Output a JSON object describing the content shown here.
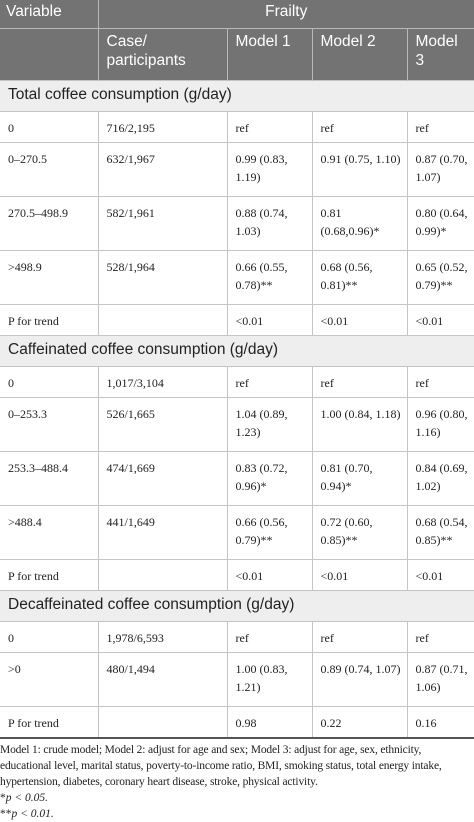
{
  "header": {
    "variable_label": "Variable",
    "frailty_label": "Frailty",
    "columns": [
      "Case/ participants",
      "Model 1",
      "Model 2",
      "Model 3"
    ]
  },
  "sections": [
    {
      "title": "Total coffee consumption (g/day)",
      "rows": [
        {
          "variable": "0",
          "case": "716/2,195",
          "m1": "ref",
          "m2": "ref",
          "m3": "ref"
        },
        {
          "variable": "0–270.5",
          "case": "632/1,967",
          "m1": "0.99 (0.83, 1.19)",
          "m2": "0.91 (0.75, 1.10)",
          "m3": "0.87 (0.70, 1.07)"
        },
        {
          "variable": "270.5–498.9",
          "case": "582/1,961",
          "m1": "0.88 (0.74, 1.03)",
          "m2": "0.81 (0.68,0.96)*",
          "m3": "0.80 (0.64, 0.99)*"
        },
        {
          "variable": ">498.9",
          "case": "528/1,964",
          "m1": "0.66 (0.55, 0.78)**",
          "m2": "0.68 (0.56, 0.81)**",
          "m3": "0.65 (0.52, 0.79)**"
        },
        {
          "variable": "P for trend",
          "case": "",
          "m1": "<0.01",
          "m2": "<0.01",
          "m3": "<0.01"
        }
      ]
    },
    {
      "title": "Caffeinated coffee consumption (g/day)",
      "rows": [
        {
          "variable": "0",
          "case": "1,017/3,104",
          "m1": "ref",
          "m2": "ref",
          "m3": "ref"
        },
        {
          "variable": "0–253.3",
          "case": "526/1,665",
          "m1": "1.04 (0.89, 1.23)",
          "m2": "1.00 (0.84, 1.18)",
          "m3": "0.96 (0.80, 1.16)"
        },
        {
          "variable": "253.3–488.4",
          "case": "474/1,669",
          "m1": "0.83 (0.72, 0.96)*",
          "m2": "0.81 (0.70, 0.94)*",
          "m3": "0.84 (0.69, 1.02)"
        },
        {
          "variable": ">488.4",
          "case": "441/1,649",
          "m1": "0.66 (0.56, 0.79)**",
          "m2": "0.72 (0.60, 0.85)**",
          "m3": "0.68 (0.54, 0.85)**"
        },
        {
          "variable": "P for trend",
          "case": "",
          "m1": "<0.01",
          "m2": "<0.01",
          "m3": "<0.01"
        }
      ]
    },
    {
      "title": "Decaffeinated coffee consumption (g/day)",
      "rows": [
        {
          "variable": "0",
          "case": "1,978/6,593",
          "m1": "ref",
          "m2": "ref",
          "m3": "ref"
        },
        {
          "variable": ">0",
          "case": "480/1,494",
          "m1": "1.00 (0.83, 1.21)",
          "m2": "0.89 (0.74, 1.07)",
          "m3": "0.87 (0.71, 1.06)"
        },
        {
          "variable": "P for trend",
          "case": "",
          "m1": "0.98",
          "m2": "0.22",
          "m3": "0.16"
        }
      ]
    }
  ],
  "notes": {
    "models": "Model 1: crude model; Model 2: adjust for age and sex; Model 3: adjust for age, sex, ethnicity, educational level, marital status, poverty-to-income ratio, BMI, smoking status, total energy intake, hypertension, diabetes, coronary heart disease, stroke, physical activity.",
    "sig1_marker": "*",
    "sig1_text": "p < 0.05.",
    "sig2_marker": "**",
    "sig2_text": "p < 0.01."
  }
}
